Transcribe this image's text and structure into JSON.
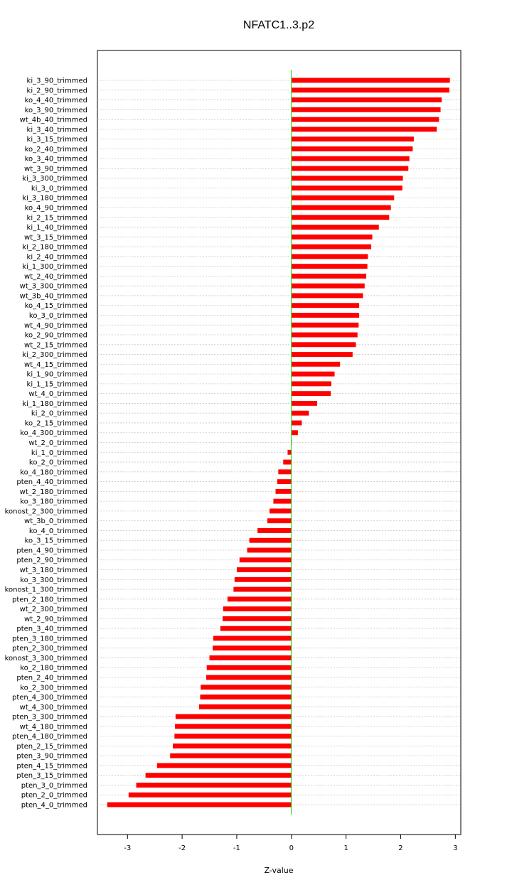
{
  "chart_data": {
    "type": "bar",
    "orientation": "horizontal",
    "title": "NFATC1..3.p2",
    "xlabel": "Z-value",
    "ylabel": "",
    "xlim": [
      -3.55,
      3.1
    ],
    "xticks": [
      -3,
      -2,
      -1,
      0,
      1,
      2,
      3
    ],
    "grid": true,
    "bar_color": "#ff0000",
    "zero_line_color": "#00dd00",
    "categories": [
      "ki_3_90_trimmed",
      "ki_2_90_trimmed",
      "ko_4_40_trimmed",
      "ko_3_90_trimmed",
      "wt_4b_40_trimmed",
      "ki_3_40_trimmed",
      "ki_3_15_trimmed",
      "ko_2_40_trimmed",
      "ko_3_40_trimmed",
      "wt_3_90_trimmed",
      "ki_3_300_trimmed",
      "ki_3_0_trimmed",
      "ki_3_180_trimmed",
      "ko_4_90_trimmed",
      "ki_2_15_trimmed",
      "ki_1_40_trimmed",
      "wt_3_15_trimmed",
      "ki_2_180_trimmed",
      "ki_2_40_trimmed",
      "ki_1_300_trimmed",
      "wt_2_40_trimmed",
      "wt_3_300_trimmed",
      "wt_3b_40_trimmed",
      "ko_4_15_trimmed",
      "ko_3_0_trimmed",
      "wt_4_90_trimmed",
      "ko_2_90_trimmed",
      "wt_2_15_trimmed",
      "ki_2_300_trimmed",
      "wt_4_15_trimmed",
      "ki_1_90_trimmed",
      "ki_1_15_trimmed",
      "wt_4_0_trimmed",
      "ki_1_180_trimmed",
      "ki_2_0_trimmed",
      "ko_2_15_trimmed",
      "ko_4_300_trimmed",
      "wt_2_0_trimmed",
      "ki_1_0_trimmed",
      "ko_2_0_trimmed",
      "ko_4_180_trimmed",
      "pten_4_40_trimmed",
      "wt_2_180_trimmed",
      "ko_3_180_trimmed",
      "konost_2_300_trimmed",
      "wt_3b_0_trimmed",
      "ko_4_0_trimmed",
      "ko_3_15_trimmed",
      "pten_4_90_trimmed",
      "pten_2_90_trimmed",
      "wt_3_180_trimmed",
      "ko_3_300_trimmed",
      "konost_1_300_trimmed",
      "pten_2_180_trimmed",
      "wt_2_300_trimmed",
      "wt_2_90_trimmed",
      "pten_3_40_trimmed",
      "pten_3_180_trimmed",
      "pten_2_300_trimmed",
      "konost_3_300_trimmed",
      "ko_2_180_trimmed",
      "pten_2_40_trimmed",
      "ko_2_300_trimmed",
      "pten_4_300_trimmed",
      "wt_4_300_trimmed",
      "pten_3_300_trimmed",
      "wt_4_180_trimmed",
      "pten_4_180_trimmed",
      "pten_2_15_trimmed",
      "pten_3_90_trimmed",
      "pten_4_15_trimmed",
      "pten_3_15_trimmed",
      "pten_3_0_trimmed",
      "pten_2_0_trimmed",
      "pten_4_0_trimmed"
    ],
    "values": [
      2.9,
      2.89,
      2.75,
      2.73,
      2.7,
      2.66,
      2.24,
      2.22,
      2.16,
      2.14,
      2.04,
      2.03,
      1.88,
      1.82,
      1.79,
      1.6,
      1.48,
      1.46,
      1.4,
      1.39,
      1.37,
      1.34,
      1.31,
      1.24,
      1.24,
      1.23,
      1.21,
      1.18,
      1.12,
      0.89,
      0.79,
      0.73,
      0.72,
      0.47,
      0.32,
      0.19,
      0.12,
      0.01,
      -0.07,
      -0.15,
      -0.24,
      -0.26,
      -0.29,
      -0.33,
      -0.4,
      -0.44,
      -0.62,
      -0.77,
      -0.81,
      -0.95,
      -1.0,
      -1.04,
      -1.06,
      -1.17,
      -1.25,
      -1.26,
      -1.3,
      -1.43,
      -1.44,
      -1.5,
      -1.55,
      -1.56,
      -1.66,
      -1.67,
      -1.69,
      -2.12,
      -2.13,
      -2.14,
      -2.17,
      -2.22,
      -2.46,
      -2.67,
      -2.84,
      -2.98,
      -3.37
    ]
  }
}
